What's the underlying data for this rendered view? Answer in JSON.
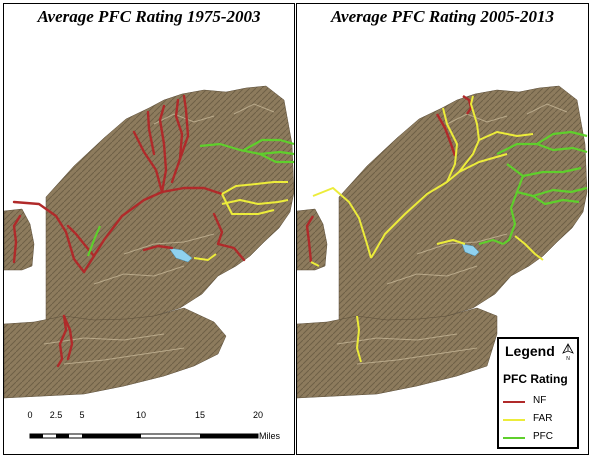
{
  "left_panel": {
    "title": "Average PFC Rating 1975-2003"
  },
  "right_panel": {
    "title": "Average PFC Rating 2005-2013"
  },
  "legend": {
    "title": "Legend",
    "subtitle": "PFC Rating",
    "north_label": "N",
    "items": [
      {
        "label": "NF",
        "color": "#b02a2a"
      },
      {
        "label": "FAR",
        "color": "#ecec3a"
      },
      {
        "label": "PFC",
        "color": "#5fcf2c"
      }
    ]
  },
  "scale_bar": {
    "ticks": [
      "0",
      "2.5",
      "5",
      "10",
      "15",
      "20"
    ],
    "units": "Miles"
  },
  "colors": {
    "terrain": "#8b7a5c",
    "lake": "#8fd1ee"
  }
}
